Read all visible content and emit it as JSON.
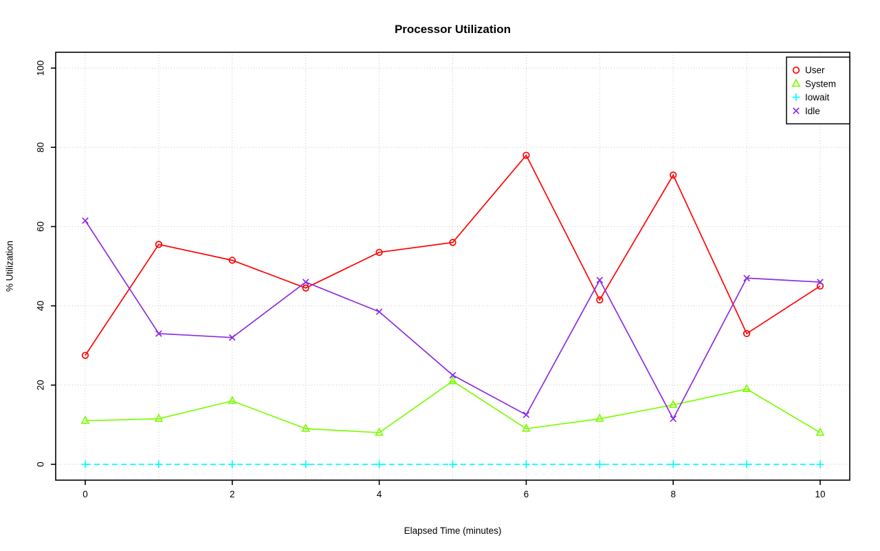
{
  "title": "Processor Utilization",
  "chart_data": {
    "type": "line",
    "title": "Processor Utilization",
    "xlabel": "Elapsed Time (minutes)",
    "ylabel": "% Utilization",
    "x": [
      0,
      1,
      2,
      3,
      4,
      5,
      6,
      7,
      8,
      9,
      10
    ],
    "xlim": [
      0,
      10
    ],
    "ylim": [
      0,
      100
    ],
    "xticks": [
      0,
      2,
      4,
      6,
      8,
      10
    ],
    "yticks": [
      0,
      20,
      40,
      60,
      80,
      100
    ],
    "grid": true,
    "grid_style": "dotted",
    "legend_position": "top-right",
    "series": [
      {
        "name": "User",
        "color": "#FF0000",
        "marker": "circle",
        "linestyle": "solid",
        "values": [
          27.5,
          55.5,
          51.5,
          44.5,
          53.5,
          56,
          78,
          41.5,
          73,
          33,
          45
        ]
      },
      {
        "name": "System",
        "color": "#7CFC00",
        "marker": "triangle",
        "linestyle": "solid",
        "values": [
          11,
          11.5,
          16,
          9,
          8,
          21,
          9,
          11.5,
          15,
          19,
          8
        ]
      },
      {
        "name": "Iowait",
        "color": "#00FFFF",
        "marker": "plus",
        "linestyle": "dashed",
        "values": [
          0,
          0,
          0,
          0,
          0,
          0,
          0,
          0,
          0,
          0,
          0
        ]
      },
      {
        "name": "Idle",
        "color": "#8A2BE2",
        "marker": "x",
        "linestyle": "solid",
        "values": [
          61.5,
          33,
          32,
          46,
          38.5,
          22.5,
          12.5,
          46.5,
          11.5,
          47,
          46
        ]
      }
    ],
    "colors": {
      "grid": "#c6c6c6",
      "axis": "#000000",
      "legend_background": "#ffffff"
    }
  }
}
